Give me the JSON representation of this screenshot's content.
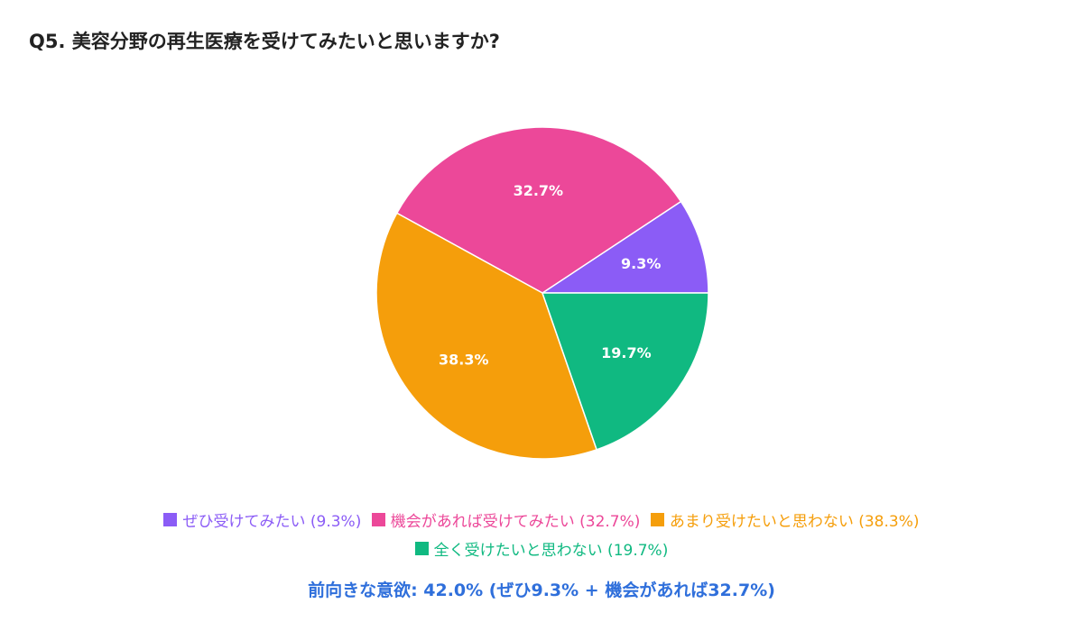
{
  "chart_data": {
    "type": "pie",
    "title": "Q5. 美容分野の再生医療を受けてみたいと思いますか?",
    "categories": [
      "ぜひ受けてみたい",
      "機会があれば受けてみたい",
      "あまり受けたいと思わない",
      "全く受けたいと思わない"
    ],
    "values": [
      9.3,
      32.7,
      38.3,
      19.7
    ],
    "data_labels": [
      "9.3%",
      "32.7%",
      "38.3%",
      "19.7%"
    ],
    "colors": [
      "#8b5cf6",
      "#ec4899",
      "#f59e0b",
      "#10b981"
    ],
    "legend": {
      "placement": "bottom",
      "entries": [
        "ぜひ受けてみたい (9.3%)",
        "機会があれば受けてみたい (32.7%)",
        "あまり受けたいと思わない (38.3%)",
        "全く受けたいと思わない (19.7%)"
      ]
    },
    "summary": "前向きな意欲: 42.0% (ぜひ9.3% + 機会があれば32.7%)",
    "summary_color": "#2f6fdb"
  }
}
